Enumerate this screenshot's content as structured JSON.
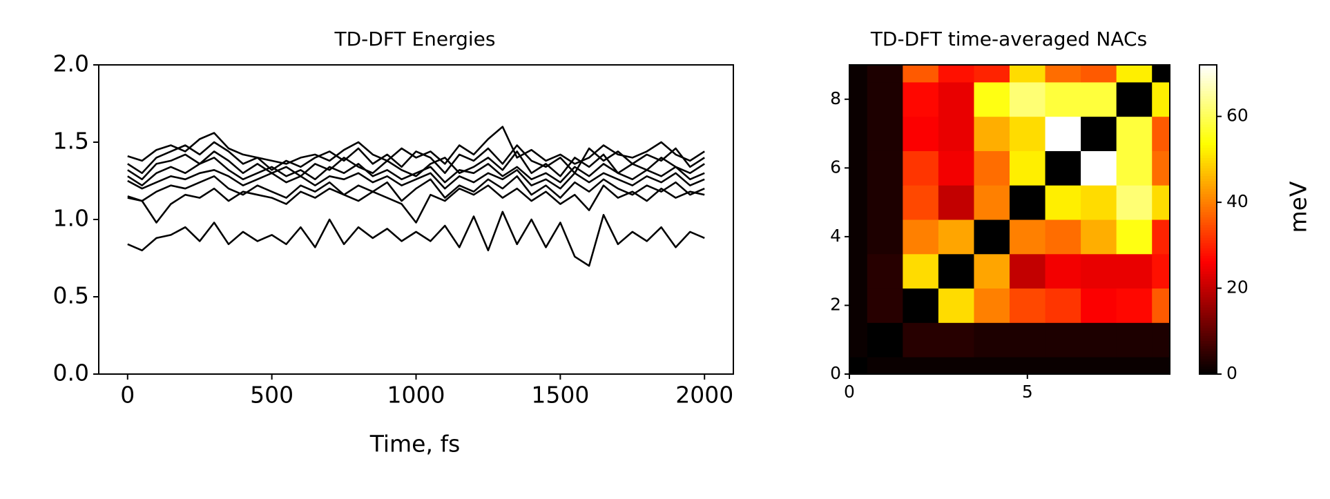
{
  "chart_data": [
    {
      "type": "line",
      "title": "TD-DFT Energies",
      "xlabel": "Time, fs",
      "x": [
        0,
        50,
        100,
        150,
        200,
        250,
        300,
        350,
        400,
        450,
        500,
        550,
        600,
        650,
        700,
        750,
        800,
        850,
        900,
        950,
        1000,
        1050,
        1100,
        1150,
        1200,
        1250,
        1300,
        1350,
        1400,
        1450,
        1500,
        1550,
        1600,
        1650,
        1700,
        1750,
        1800,
        1850,
        1900,
        1950,
        2000
      ],
      "xlim": [
        -100,
        2100
      ],
      "xticks": [
        0,
        500,
        1000,
        1500,
        2000
      ],
      "ylim": [
        0,
        2
      ],
      "yticks": [
        {
          "value": 0,
          "label": "0.0"
        },
        0.5,
        {
          "value": 1,
          "label": "1.0"
        },
        1.5,
        {
          "value": 2,
          "label": "2.0"
        }
      ],
      "series": [
        {
          "color": "#000000",
          "values": [
            0.84,
            0.8,
            0.88,
            0.9,
            0.95,
            0.86,
            0.98,
            0.84,
            0.92,
            0.86,
            0.9,
            0.84,
            0.95,
            0.82,
            1.0,
            0.84,
            0.95,
            0.88,
            0.94,
            0.86,
            0.92,
            0.86,
            0.96,
            0.82,
            1.02,
            0.8,
            1.05,
            0.84,
            1.0,
            0.82,
            0.98,
            0.76,
            0.7,
            1.03,
            0.84,
            0.92,
            0.86,
            0.95,
            0.82,
            0.92,
            0.88
          ]
        },
        {
          "color": "#000000",
          "values": [
            1.41,
            1.38,
            1.45,
            1.48,
            1.44,
            1.52,
            1.56,
            1.46,
            1.42,
            1.4,
            1.38,
            1.36,
            1.4,
            1.42,
            1.38,
            1.45,
            1.5,
            1.42,
            1.38,
            1.46,
            1.4,
            1.44,
            1.36,
            1.48,
            1.42,
            1.52,
            1.6,
            1.4,
            1.45,
            1.38,
            1.42,
            1.36,
            1.4,
            1.48,
            1.42,
            1.4,
            1.44,
            1.5,
            1.42,
            1.38,
            1.44
          ]
        },
        {
          "color": "#000000",
          "values": [
            1.36,
            1.3,
            1.4,
            1.44,
            1.48,
            1.42,
            1.5,
            1.44,
            1.36,
            1.4,
            1.32,
            1.38,
            1.34,
            1.4,
            1.44,
            1.38,
            1.46,
            1.36,
            1.42,
            1.34,
            1.44,
            1.4,
            1.3,
            1.42,
            1.38,
            1.46,
            1.36,
            1.48,
            1.38,
            1.34,
            1.4,
            1.3,
            1.46,
            1.38,
            1.44,
            1.36,
            1.42,
            1.38,
            1.46,
            1.34,
            1.4
          ]
        },
        {
          "color": "#000000",
          "values": [
            1.32,
            1.26,
            1.36,
            1.38,
            1.42,
            1.36,
            1.44,
            1.38,
            1.3,
            1.36,
            1.3,
            1.34,
            1.28,
            1.36,
            1.32,
            1.4,
            1.34,
            1.3,
            1.38,
            1.32,
            1.28,
            1.36,
            1.4,
            1.3,
            1.34,
            1.4,
            1.32,
            1.44,
            1.3,
            1.36,
            1.28,
            1.4,
            1.34,
            1.42,
            1.3,
            1.36,
            1.32,
            1.4,
            1.34,
            1.3,
            1.36
          ]
        },
        {
          "color": "#000000",
          "values": [
            1.28,
            1.22,
            1.3,
            1.34,
            1.3,
            1.36,
            1.4,
            1.32,
            1.26,
            1.3,
            1.34,
            1.28,
            1.32,
            1.26,
            1.34,
            1.3,
            1.36,
            1.28,
            1.32,
            1.26,
            1.3,
            1.34,
            1.24,
            1.32,
            1.3,
            1.36,
            1.28,
            1.34,
            1.26,
            1.3,
            1.24,
            1.34,
            1.28,
            1.36,
            1.3,
            1.26,
            1.32,
            1.28,
            1.34,
            1.26,
            1.3
          ]
        },
        {
          "color": "#000000",
          "values": [
            1.25,
            1.2,
            1.24,
            1.28,
            1.26,
            1.3,
            1.32,
            1.28,
            1.22,
            1.26,
            1.3,
            1.24,
            1.28,
            1.22,
            1.28,
            1.26,
            1.3,
            1.24,
            1.28,
            1.22,
            1.26,
            1.3,
            1.2,
            1.28,
            1.24,
            1.3,
            1.26,
            1.32,
            1.22,
            1.26,
            1.2,
            1.3,
            1.24,
            1.3,
            1.26,
            1.22,
            1.28,
            1.24,
            1.3,
            1.22,
            1.26
          ]
        },
        {
          "color": "#000000",
          "values": [
            1.15,
            1.12,
            1.18,
            1.22,
            1.2,
            1.24,
            1.28,
            1.2,
            1.16,
            1.22,
            1.18,
            1.14,
            1.22,
            1.18,
            1.24,
            1.16,
            1.22,
            1.18,
            1.24,
            1.12,
            1.2,
            1.26,
            1.14,
            1.22,
            1.18,
            1.26,
            1.2,
            1.28,
            1.16,
            1.22,
            1.14,
            1.24,
            1.18,
            1.26,
            1.2,
            1.16,
            1.22,
            1.18,
            1.24,
            1.16,
            1.2
          ]
        },
        {
          "color": "#000000",
          "values": [
            1.14,
            1.12,
            0.98,
            1.1,
            1.16,
            1.14,
            1.2,
            1.12,
            1.18,
            1.16,
            1.14,
            1.1,
            1.18,
            1.14,
            1.2,
            1.16,
            1.12,
            1.18,
            1.14,
            1.1,
            0.98,
            1.16,
            1.12,
            1.2,
            1.16,
            1.22,
            1.14,
            1.2,
            1.12,
            1.18,
            1.1,
            1.16,
            1.06,
            1.22,
            1.14,
            1.18,
            1.12,
            1.2,
            1.14,
            1.18,
            1.16
          ]
        }
      ]
    },
    {
      "type": "heatmap",
      "title": "TD-DFT time-averaged NACs",
      "colormap": "hot",
      "xlim": [
        0,
        9
      ],
      "xticks": [
        0,
        5
      ],
      "ylim": [
        0,
        9
      ],
      "yticks": [
        0,
        2,
        4,
        6,
        8
      ],
      "clim": [
        0,
        72
      ],
      "cticks": [
        0,
        20,
        40,
        60
      ],
      "clabel": "meV",
      "values": [
        [
          0,
          1,
          1,
          1,
          1,
          1,
          1,
          1,
          1,
          1
        ],
        [
          1,
          0,
          4,
          4,
          3,
          3,
          3,
          3,
          3,
          3
        ],
        [
          1,
          4,
          0,
          50,
          40,
          34,
          32,
          26,
          27,
          36
        ],
        [
          1,
          4,
          50,
          0,
          44,
          20,
          25,
          24,
          24,
          28
        ],
        [
          1,
          3,
          40,
          44,
          0,
          40,
          38,
          45,
          55,
          30
        ],
        [
          1,
          3,
          34,
          20,
          40,
          0,
          52,
          50,
          62,
          50
        ],
        [
          1,
          3,
          32,
          25,
          38,
          52,
          0,
          72,
          58,
          38
        ],
        [
          1,
          3,
          26,
          24,
          45,
          50,
          72,
          0,
          58,
          36
        ],
        [
          1,
          3,
          27,
          24,
          55,
          62,
          58,
          58,
          0,
          52
        ],
        [
          1,
          3,
          36,
          28,
          30,
          50,
          38,
          36,
          52,
          0
        ]
      ]
    }
  ]
}
